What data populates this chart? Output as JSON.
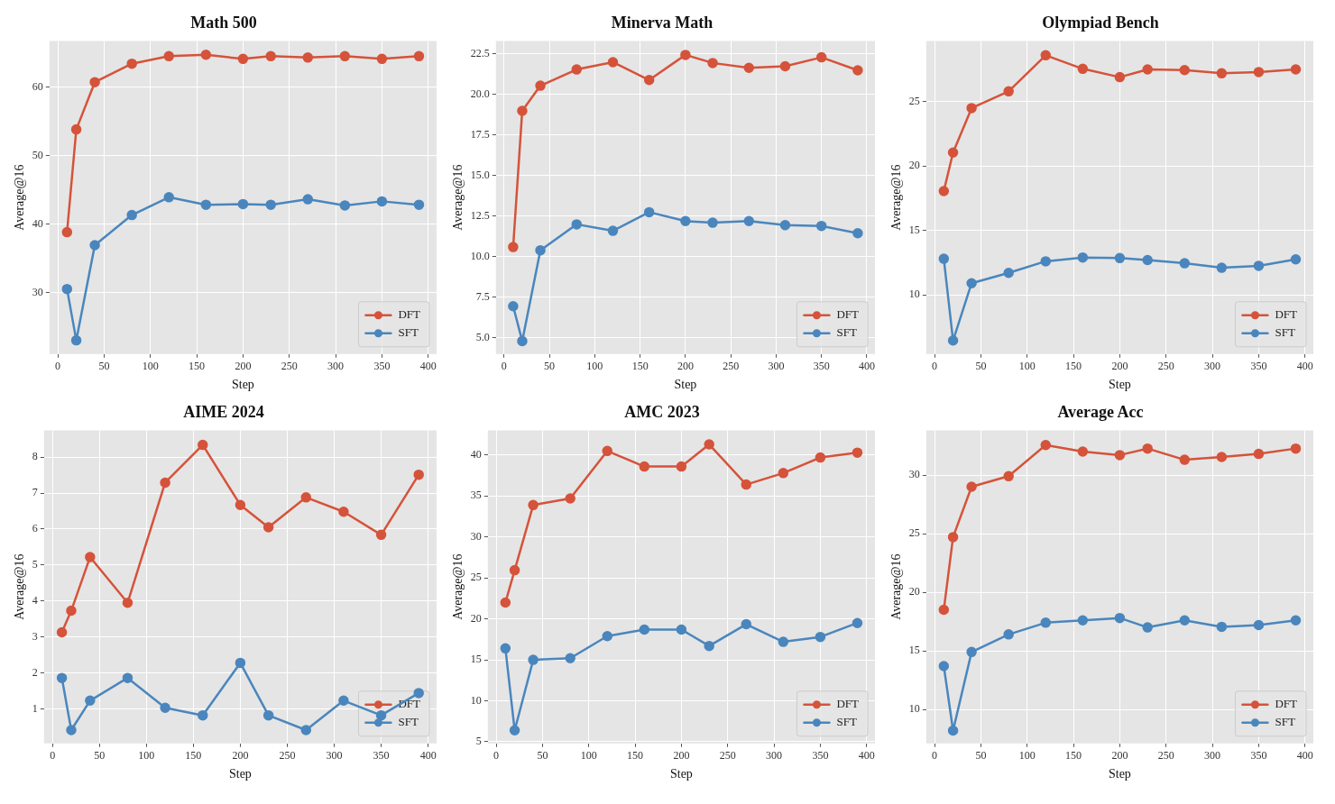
{
  "chart_data": [
    {
      "type": "line",
      "title": "Math 500",
      "xlabel": "Step",
      "ylabel": "Average@16",
      "x": [
        10,
        20,
        40,
        80,
        120,
        160,
        200,
        230,
        270,
        310,
        350,
        390
      ],
      "xlim": [
        -9,
        409
      ],
      "xticks": [
        0,
        50,
        100,
        150,
        200,
        250,
        300,
        350,
        400
      ],
      "ylim": [
        21,
        66.7
      ],
      "yticks": [
        30,
        40,
        50,
        60
      ],
      "grid": true,
      "legend": "bottom right",
      "marker": "circle",
      "line_style": "solid",
      "series": [
        {
          "name": "DFT",
          "color": "#d5533a",
          "values": [
            38.8,
            53.8,
            60.7,
            63.4,
            64.5,
            64.7,
            64.1,
            64.5,
            64.3,
            64.5,
            64.1,
            64.5
          ]
        },
        {
          "name": "SFT",
          "color": "#4a86bd",
          "values": [
            30.5,
            23.0,
            36.9,
            41.3,
            43.9,
            42.8,
            42.9,
            42.8,
            43.6,
            42.7,
            43.3,
            42.8
          ]
        }
      ]
    },
    {
      "type": "line",
      "title": "Minerva Math",
      "xlabel": "Step",
      "ylabel": "Average@16",
      "x": [
        10,
        20,
        40,
        80,
        120,
        160,
        200,
        230,
        270,
        310,
        350,
        390
      ],
      "xlim": [
        -9,
        409
      ],
      "xticks": [
        0,
        50,
        100,
        150,
        200,
        250,
        300,
        350,
        400
      ],
      "ylim": [
        4.0,
        23.3
      ],
      "yticks": [
        {
          "value": 5,
          "label": "5.0"
        },
        7.5,
        {
          "value": 10,
          "label": "10.0"
        },
        12.5,
        {
          "value": 15,
          "label": "15.0"
        },
        17.5,
        {
          "value": 20,
          "label": "20.0"
        },
        22.5
      ],
      "grid": true,
      "legend": "bottom right",
      "marker": "circle",
      "line_style": "solid",
      "series": [
        {
          "name": "DFT",
          "color": "#d5533a",
          "values": [
            10.6,
            19.0,
            20.55,
            21.55,
            22.0,
            20.9,
            22.45,
            21.95,
            21.65,
            21.75,
            22.3,
            21.5
          ]
        },
        {
          "name": "SFT",
          "color": "#4a86bd",
          "values": [
            6.95,
            4.8,
            10.4,
            12.0,
            11.6,
            12.75,
            12.2,
            12.1,
            12.2,
            11.95,
            11.9,
            11.45
          ]
        }
      ]
    },
    {
      "type": "line",
      "title": "Olympiad Bench",
      "xlabel": "Step",
      "ylabel": "Average@16",
      "x": [
        10,
        20,
        40,
        80,
        120,
        160,
        200,
        230,
        270,
        310,
        350,
        390
      ],
      "xlim": [
        -9,
        409
      ],
      "xticks": [
        0,
        50,
        100,
        150,
        200,
        250,
        300,
        350,
        400
      ],
      "ylim": [
        5.4,
        29.7
      ],
      "yticks": [
        10,
        15,
        20,
        25
      ],
      "grid": true,
      "legend": "bottom right",
      "marker": "circle",
      "line_style": "solid",
      "series": [
        {
          "name": "DFT",
          "color": "#d5533a",
          "values": [
            18.05,
            21.05,
            24.5,
            25.8,
            28.6,
            27.55,
            26.9,
            27.5,
            27.45,
            27.2,
            27.3,
            27.5
          ]
        },
        {
          "name": "SFT",
          "color": "#4a86bd",
          "values": [
            12.8,
            6.45,
            10.9,
            11.7,
            12.6,
            12.9,
            12.85,
            12.7,
            12.45,
            12.1,
            12.25,
            12.75
          ]
        }
      ]
    },
    {
      "type": "line",
      "title": "AIME 2024",
      "xlabel": "Step",
      "ylabel": "Average@16",
      "x": [
        10,
        20,
        40,
        80,
        120,
        160,
        200,
        230,
        270,
        310,
        350,
        390
      ],
      "xlim": [
        -9,
        409
      ],
      "xticks": [
        0,
        50,
        100,
        150,
        200,
        250,
        300,
        350,
        400
      ],
      "ylim": [
        0.04,
        8.74
      ],
      "yticks": [
        1,
        2,
        3,
        4,
        5,
        6,
        7,
        8
      ],
      "grid": true,
      "legend": "bottom right",
      "marker": "circle",
      "line_style": "solid",
      "series": [
        {
          "name": "DFT",
          "color": "#d5533a",
          "values": [
            3.13,
            3.73,
            5.22,
            3.95,
            7.29,
            8.34,
            6.67,
            6.05,
            6.88,
            6.48,
            5.84,
            7.51
          ]
        },
        {
          "name": "SFT",
          "color": "#4a86bd",
          "values": [
            1.86,
            0.41,
            1.23,
            1.86,
            1.03,
            0.82,
            2.28,
            0.82,
            0.41,
            1.23,
            0.82,
            1.44
          ]
        }
      ]
    },
    {
      "type": "line",
      "title": "AMC 2023",
      "xlabel": "Step",
      "ylabel": "Average@16",
      "x": [
        10,
        20,
        40,
        80,
        120,
        160,
        200,
        230,
        270,
        310,
        350,
        390
      ],
      "xlim": [
        -9,
        409
      ],
      "xticks": [
        0,
        50,
        100,
        150,
        200,
        250,
        300,
        350,
        400
      ],
      "ylim": [
        4.8,
        43
      ],
      "yticks": [
        5,
        10,
        15,
        20,
        25,
        30,
        35,
        40
      ],
      "grid": true,
      "legend": "bottom right",
      "marker": "circle",
      "line_style": "solid",
      "series": [
        {
          "name": "DFT",
          "color": "#d5533a",
          "values": [
            22.0,
            25.95,
            33.9,
            34.7,
            40.5,
            38.6,
            38.6,
            41.3,
            36.4,
            37.8,
            39.7,
            40.3
          ]
        },
        {
          "name": "SFT",
          "color": "#4a86bd",
          "values": [
            16.4,
            6.4,
            15.0,
            15.2,
            17.9,
            18.7,
            18.7,
            16.7,
            19.35,
            17.2,
            17.8,
            19.5
          ]
        }
      ]
    },
    {
      "type": "line",
      "title": "Average Acc",
      "xlabel": "Step",
      "ylabel": "Average@16",
      "x": [
        10,
        20,
        40,
        80,
        120,
        160,
        200,
        230,
        270,
        310,
        350,
        390
      ],
      "xlim": [
        -9,
        409
      ],
      "xticks": [
        0,
        50,
        100,
        150,
        200,
        250,
        300,
        350,
        400
      ],
      "ylim": [
        7.1,
        33.8
      ],
      "yticks": [
        10,
        15,
        20,
        25,
        30
      ],
      "grid": true,
      "legend": "bottom right",
      "marker": "circle",
      "line_style": "solid",
      "series": [
        {
          "name": "DFT",
          "color": "#d5533a",
          "values": [
            18.5,
            24.7,
            29.0,
            29.9,
            32.56,
            32.0,
            31.7,
            32.26,
            31.3,
            31.54,
            31.8,
            32.26
          ]
        },
        {
          "name": "SFT",
          "color": "#4a86bd",
          "values": [
            13.7,
            8.2,
            14.9,
            16.4,
            17.4,
            17.6,
            17.8,
            17.0,
            17.6,
            17.05,
            17.2,
            17.6
          ]
        }
      ]
    }
  ]
}
